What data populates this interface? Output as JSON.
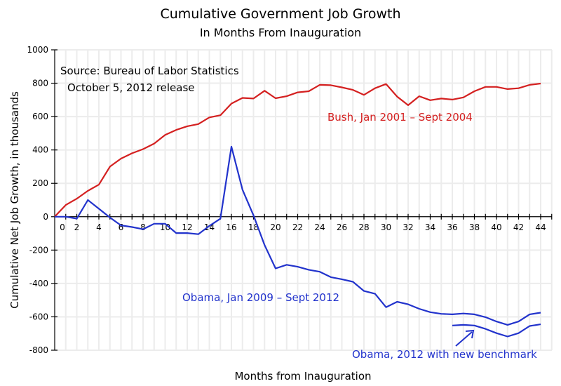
{
  "chart_data": {
    "type": "line",
    "title": "Cumulative Government Job Growth",
    "subtitle": "In Months From Inauguration",
    "xlabel": "Months from Inauguration",
    "ylabel": "Cumulative Net Job Growth, in thousands",
    "xlim": [
      0,
      44
    ],
    "ylim": [
      -800,
      1000
    ],
    "x_ticks": [
      0,
      2,
      4,
      6,
      8,
      10,
      12,
      14,
      16,
      18,
      20,
      22,
      24,
      26,
      28,
      30,
      32,
      34,
      36,
      38,
      40,
      42,
      44
    ],
    "y_ticks": [
      -800,
      -600,
      -400,
      -200,
      0,
      200,
      400,
      600,
      800,
      1000
    ],
    "grid": true,
    "colors": {
      "bush": "#d42020",
      "obama": "#2233cc"
    },
    "annotations": {
      "source_line1": "Source:  Bureau of Labor Statistics",
      "source_line2": "October 5, 2012 release",
      "bush_label": "Bush, Jan 2001 – Sept 2004",
      "obama_label": "Obama, Jan 2009 – Sept 2012",
      "benchmark_label": "Obama, 2012 with new benchmark"
    },
    "series": [
      {
        "name": "Bush, Jan 2001 – Sept 2004",
        "color": "#d42020",
        "x": [
          0,
          1,
          2,
          3,
          4,
          5,
          6,
          7,
          8,
          9,
          10,
          11,
          12,
          13,
          14,
          15,
          16,
          17,
          18,
          19,
          20,
          21,
          22,
          23,
          24,
          25,
          26,
          27,
          28,
          29,
          30,
          31,
          32,
          33,
          34,
          35,
          36,
          37,
          38,
          39,
          40,
          41,
          42,
          43,
          44
        ],
        "values": [
          0,
          70,
          108,
          155,
          192,
          300,
          348,
          380,
          405,
          438,
          490,
          520,
          542,
          555,
          595,
          608,
          678,
          712,
          708,
          755,
          710,
          722,
          745,
          752,
          790,
          788,
          775,
          760,
          730,
          770,
          795,
          720,
          668,
          722,
          698,
          708,
          702,
          715,
          752,
          778,
          778,
          765,
          770,
          790,
          798
        ]
      },
      {
        "name": "Obama, Jan 2009 – Sept 2012",
        "color": "#2233cc",
        "x": [
          0,
          1,
          2,
          3,
          4,
          5,
          6,
          7,
          8,
          9,
          10,
          11,
          12,
          13,
          14,
          15,
          16,
          17,
          18,
          19,
          20,
          21,
          22,
          23,
          24,
          25,
          26,
          27,
          28,
          29,
          30,
          31,
          32,
          33,
          34,
          35,
          36,
          37,
          38,
          39,
          40,
          41,
          42,
          43,
          44
        ],
        "values": [
          0,
          0,
          -12,
          100,
          48,
          -5,
          -52,
          -62,
          -75,
          -42,
          -42,
          -98,
          -98,
          -105,
          -55,
          -12,
          420,
          162,
          8,
          -170,
          -310,
          -288,
          -300,
          -318,
          -330,
          -362,
          -375,
          -390,
          -445,
          -462,
          -542,
          -510,
          -525,
          -552,
          -572,
          -582,
          -585,
          -580,
          -585,
          -602,
          -628,
          -648,
          -628,
          -585,
          -575
        ]
      },
      {
        "name": "Obama, 2012 with new benchmark",
        "color": "#2233cc",
        "x": [
          36,
          37,
          38,
          39,
          40,
          41,
          42,
          43,
          44
        ],
        "values": [
          -652,
          -648,
          -652,
          -672,
          -698,
          -718,
          -698,
          -655,
          -645
        ]
      }
    ]
  }
}
